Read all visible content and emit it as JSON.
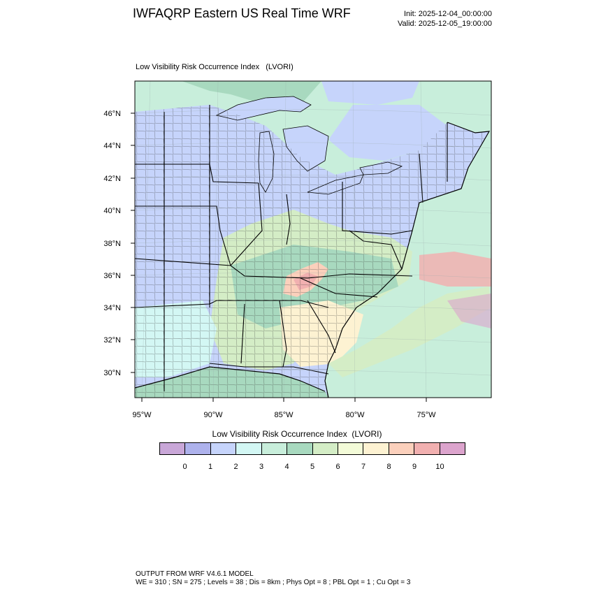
{
  "header": {
    "title": "IWFAQRP Eastern US Real Time WRF",
    "init": "Init: 2025-12-04_00:00:00",
    "valid": "Valid: 2025-12-05_19:00:00"
  },
  "map": {
    "subtitle": "Low Visibility Risk Occurrence Index   (LVORI)",
    "lat_labels": [
      "46°N",
      "44°N",
      "42°N",
      "40°N",
      "38°N",
      "36°N",
      "34°N",
      "32°N",
      "30°N"
    ],
    "lon_labels": [
      "95°W",
      "90°W",
      "85°W",
      "80°W",
      "75°W"
    ]
  },
  "colorbar": {
    "title": "Low Visibility Risk Occurrence Index  (LVORI)",
    "labels": [
      "0",
      "1",
      "2",
      "3",
      "4",
      "5",
      "6",
      "7",
      "8",
      "9",
      "10"
    ],
    "colors": [
      "#c9a7d8",
      "#aeb2ec",
      "#c6d4fb",
      "#d3f7f4",
      "#c8eedb",
      "#a8d9bf",
      "#d4edc6",
      "#f3fbd8",
      "#fdf2d2",
      "#fbd0bc",
      "#f1b0b0",
      "#dca4cd"
    ]
  },
  "footer": {
    "line1": "OUTPUT FROM WRF V4.6.1 MODEL",
    "line2": "WE = 310 ; SN = 275 ; Levels = 38 ; Dis = 8km ; Phys Opt = 8 ; PBL Opt = 1 ; Cu Opt = 3"
  }
}
